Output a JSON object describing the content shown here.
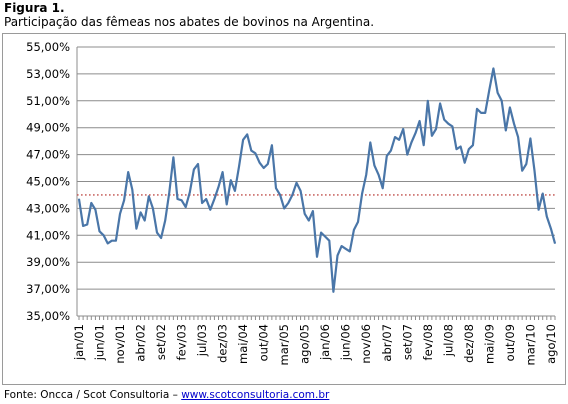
{
  "figure": {
    "title": "Figura 1.",
    "subtitle": "Participação das fêmeas nos abates de bovinos na Argentina."
  },
  "source": {
    "prefix": "Fonte: Oncca / Scot Consultoria – ",
    "link_text": "www.scotconsultoria.com.br"
  },
  "chart_data": {
    "type": "line",
    "title": "",
    "xlabel": "",
    "ylabel": "",
    "ylim": [
      35,
      55
    ],
    "ytick_values": [
      35,
      37,
      39,
      41,
      43,
      45,
      47,
      49,
      51,
      53,
      55
    ],
    "ytick_labels": [
      "35,00%",
      "37,00%",
      "39,00%",
      "41,00%",
      "43,00%",
      "45,00%",
      "47,00%",
      "49,00%",
      "51,00%",
      "53,00%",
      "55,00%"
    ],
    "xtick_labels": [
      "jan/01",
      "jun/01",
      "nov/01",
      "abr/02",
      "set/02",
      "fev/03",
      "jul/03",
      "dez/03",
      "mai/04",
      "out/04",
      "mar/05",
      "ago/05",
      "jan/06",
      "jun/06",
      "nov/06",
      "abr/07",
      "set/07",
      "fev/08",
      "jul/08",
      "dez/08",
      "mai/09",
      "out/09",
      "mar/10",
      "ago/10"
    ],
    "grid": "horizontal",
    "line_color": "#4a76a8",
    "reference_line": {
      "value": 44.0,
      "color": "#c0504d",
      "style": "dotted"
    },
    "series": [
      {
        "start": "jan/01",
        "frequency": "monthly",
        "values": [
          43.7,
          41.7,
          41.8,
          43.4,
          42.9,
          41.3,
          41.0,
          40.4,
          40.6,
          40.6,
          42.6,
          43.6,
          45.7,
          44.4,
          41.5,
          42.7,
          42.1,
          43.9,
          43.0,
          41.2,
          40.8,
          42.1,
          44.2,
          46.8,
          43.7,
          43.6,
          43.1,
          44.2,
          45.9,
          46.3,
          43.4,
          43.7,
          42.9,
          43.7,
          44.6,
          45.7,
          43.3,
          45.1,
          44.3,
          46.1,
          48.1,
          48.5,
          47.3,
          47.1,
          46.4,
          46.0,
          46.3,
          47.7,
          44.5,
          44.0,
          43.0,
          43.4,
          44.0,
          44.9,
          44.3,
          42.6,
          42.1,
          42.8,
          39.4,
          41.2,
          40.9,
          40.6,
          36.8,
          39.5,
          40.2,
          40.0,
          39.8,
          41.4,
          42.0,
          44.1,
          45.5,
          47.9,
          46.2,
          45.5,
          44.5,
          46.9,
          47.3,
          48.3,
          48.1,
          48.9,
          47.0,
          47.9,
          48.6,
          49.5,
          47.7,
          51.0,
          48.4,
          48.9,
          50.8,
          49.6,
          49.3,
          49.1,
          47.4,
          47.6,
          46.4,
          47.4,
          47.7,
          50.4,
          50.1,
          50.1,
          51.8,
          53.4,
          51.6,
          51.0,
          48.8,
          50.5,
          49.3,
          48.3,
          45.8,
          46.3,
          48.2,
          45.8,
          42.9,
          44.1,
          42.4,
          41.5,
          40.4
        ]
      }
    ]
  }
}
